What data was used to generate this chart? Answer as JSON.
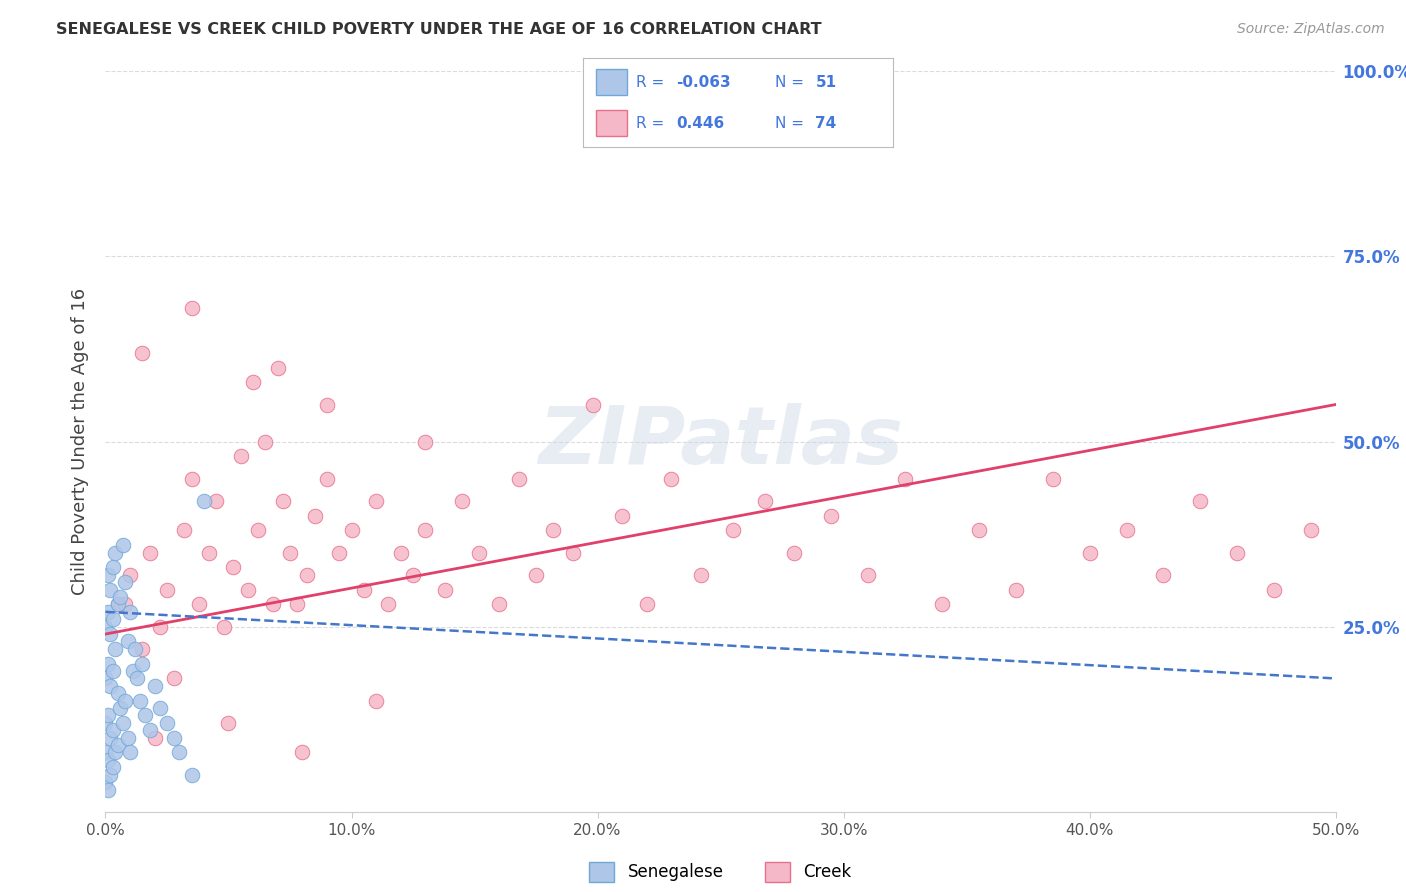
{
  "title": "SENEGALESE VS CREEK CHILD POVERTY UNDER THE AGE OF 16 CORRELATION CHART",
  "source": "Source: ZipAtlas.com",
  "ylabel": "Child Poverty Under the Age of 16",
  "xlim": [
    0.0,
    0.5
  ],
  "ylim": [
    0.0,
    1.0
  ],
  "xtick_labels": [
    "0.0%",
    "10.0%",
    "20.0%",
    "30.0%",
    "40.0%",
    "50.0%"
  ],
  "xtick_vals": [
    0.0,
    0.1,
    0.2,
    0.3,
    0.4,
    0.5
  ],
  "ytick_labels_right": [
    "25.0%",
    "50.0%",
    "75.0%",
    "100.0%"
  ],
  "ytick_vals_right": [
    0.25,
    0.5,
    0.75,
    1.0
  ],
  "senegalese_color": "#aec6e8",
  "creek_color": "#f5b8c8",
  "senegalese_edge": "#6fa8d8",
  "creek_edge": "#e8708a",
  "trend_blue": "#4477cc",
  "trend_pink": "#e0406a",
  "legend_R_senegalese": "-0.063",
  "legend_N_senegalese": "51",
  "legend_R_creek": "0.446",
  "legend_N_creek": "74",
  "background_color": "#ffffff",
  "grid_color": "#cccccc",
  "title_color": "#333333",
  "source_color": "#999999",
  "axis_label_color": "#444444",
  "right_tick_color": "#4477dd",
  "watermark": "ZIPatlas",
  "senegalese_x": [
    0.0,
    0.0,
    0.0,
    0.0,
    0.0,
    0.001,
    0.001,
    0.001,
    0.001,
    0.001,
    0.001,
    0.002,
    0.002,
    0.002,
    0.002,
    0.002,
    0.003,
    0.003,
    0.003,
    0.003,
    0.003,
    0.004,
    0.004,
    0.004,
    0.005,
    0.005,
    0.005,
    0.006,
    0.006,
    0.007,
    0.007,
    0.008,
    0.008,
    0.009,
    0.009,
    0.01,
    0.01,
    0.011,
    0.012,
    0.013,
    0.014,
    0.015,
    0.016,
    0.018,
    0.02,
    0.022,
    0.025,
    0.028,
    0.03,
    0.035,
    0.04
  ],
  "senegalese_y": [
    0.04,
    0.08,
    0.12,
    0.18,
    0.25,
    0.03,
    0.07,
    0.13,
    0.2,
    0.27,
    0.32,
    0.05,
    0.1,
    0.17,
    0.24,
    0.3,
    0.06,
    0.11,
    0.19,
    0.26,
    0.33,
    0.08,
    0.22,
    0.35,
    0.09,
    0.16,
    0.28,
    0.14,
    0.29,
    0.12,
    0.36,
    0.15,
    0.31,
    0.1,
    0.23,
    0.08,
    0.27,
    0.19,
    0.22,
    0.18,
    0.15,
    0.2,
    0.13,
    0.11,
    0.17,
    0.14,
    0.12,
    0.1,
    0.08,
    0.05,
    0.42
  ],
  "creek_x": [
    0.005,
    0.01,
    0.015,
    0.018,
    0.022,
    0.025,
    0.028,
    0.032,
    0.035,
    0.038,
    0.042,
    0.045,
    0.048,
    0.052,
    0.055,
    0.058,
    0.062,
    0.065,
    0.068,
    0.072,
    0.075,
    0.078,
    0.082,
    0.085,
    0.09,
    0.095,
    0.1,
    0.105,
    0.11,
    0.115,
    0.12,
    0.125,
    0.13,
    0.138,
    0.145,
    0.152,
    0.16,
    0.168,
    0.175,
    0.182,
    0.19,
    0.198,
    0.21,
    0.22,
    0.23,
    0.242,
    0.255,
    0.268,
    0.28,
    0.295,
    0.31,
    0.325,
    0.34,
    0.355,
    0.37,
    0.385,
    0.4,
    0.415,
    0.43,
    0.445,
    0.46,
    0.475,
    0.49,
    0.015,
    0.035,
    0.06,
    0.09,
    0.13,
    0.02,
    0.05,
    0.08,
    0.11,
    0.008,
    0.07
  ],
  "creek_y": [
    0.28,
    0.32,
    0.22,
    0.35,
    0.25,
    0.3,
    0.18,
    0.38,
    0.45,
    0.28,
    0.35,
    0.42,
    0.25,
    0.33,
    0.48,
    0.3,
    0.38,
    0.5,
    0.28,
    0.42,
    0.35,
    0.28,
    0.32,
    0.4,
    0.45,
    0.35,
    0.38,
    0.3,
    0.42,
    0.28,
    0.35,
    0.32,
    0.38,
    0.3,
    0.42,
    0.35,
    0.28,
    0.45,
    0.32,
    0.38,
    0.35,
    0.55,
    0.4,
    0.28,
    0.45,
    0.32,
    0.38,
    0.42,
    0.35,
    0.4,
    0.32,
    0.45,
    0.28,
    0.38,
    0.3,
    0.45,
    0.35,
    0.38,
    0.32,
    0.42,
    0.35,
    0.3,
    0.38,
    0.62,
    0.68,
    0.58,
    0.55,
    0.5,
    0.1,
    0.12,
    0.08,
    0.15,
    0.28,
    0.6
  ],
  "sen_trend_x": [
    0.0,
    0.5
  ],
  "sen_trend_y": [
    0.27,
    0.18
  ],
  "creek_trend_x": [
    0.0,
    0.5
  ],
  "creek_trend_y": [
    0.24,
    0.55
  ]
}
